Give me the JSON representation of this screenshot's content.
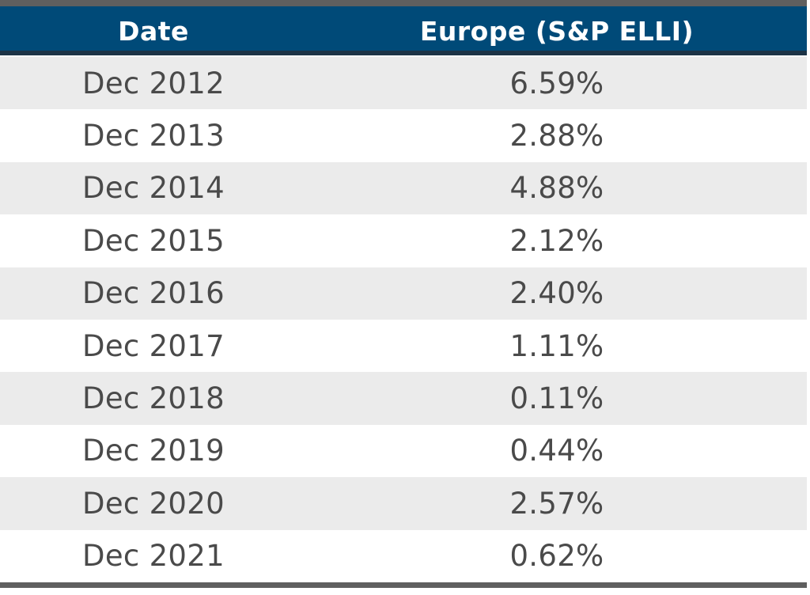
{
  "chart_data": {
    "type": "table",
    "columns": [
      "Date",
      "Europe (S&P ELLI)"
    ],
    "rows": [
      {
        "date": "Dec 2012",
        "value": "6.59%"
      },
      {
        "date": "Dec 2013",
        "value": "2.88%"
      },
      {
        "date": "Dec 2014",
        "value": "4.88%"
      },
      {
        "date": "Dec 2015",
        "value": "2.12%"
      },
      {
        "date": "Dec 2016",
        "value": "2.40%"
      },
      {
        "date": "Dec 2017",
        "value": "1.11%"
      },
      {
        "date": "Dec 2018",
        "value": "0.11%"
      },
      {
        "date": "Dec 2019",
        "value": "0.44%"
      },
      {
        "date": "Dec 2020",
        "value": "2.57%"
      },
      {
        "date": "Dec 2021",
        "value": "0.62%"
      }
    ]
  },
  "colors": {
    "header_bg": "#004a78",
    "header_text": "#ffffff",
    "row_alt": "#ebebeb",
    "row_text": "#4a4a4a",
    "rule": "#5f5f5f"
  }
}
